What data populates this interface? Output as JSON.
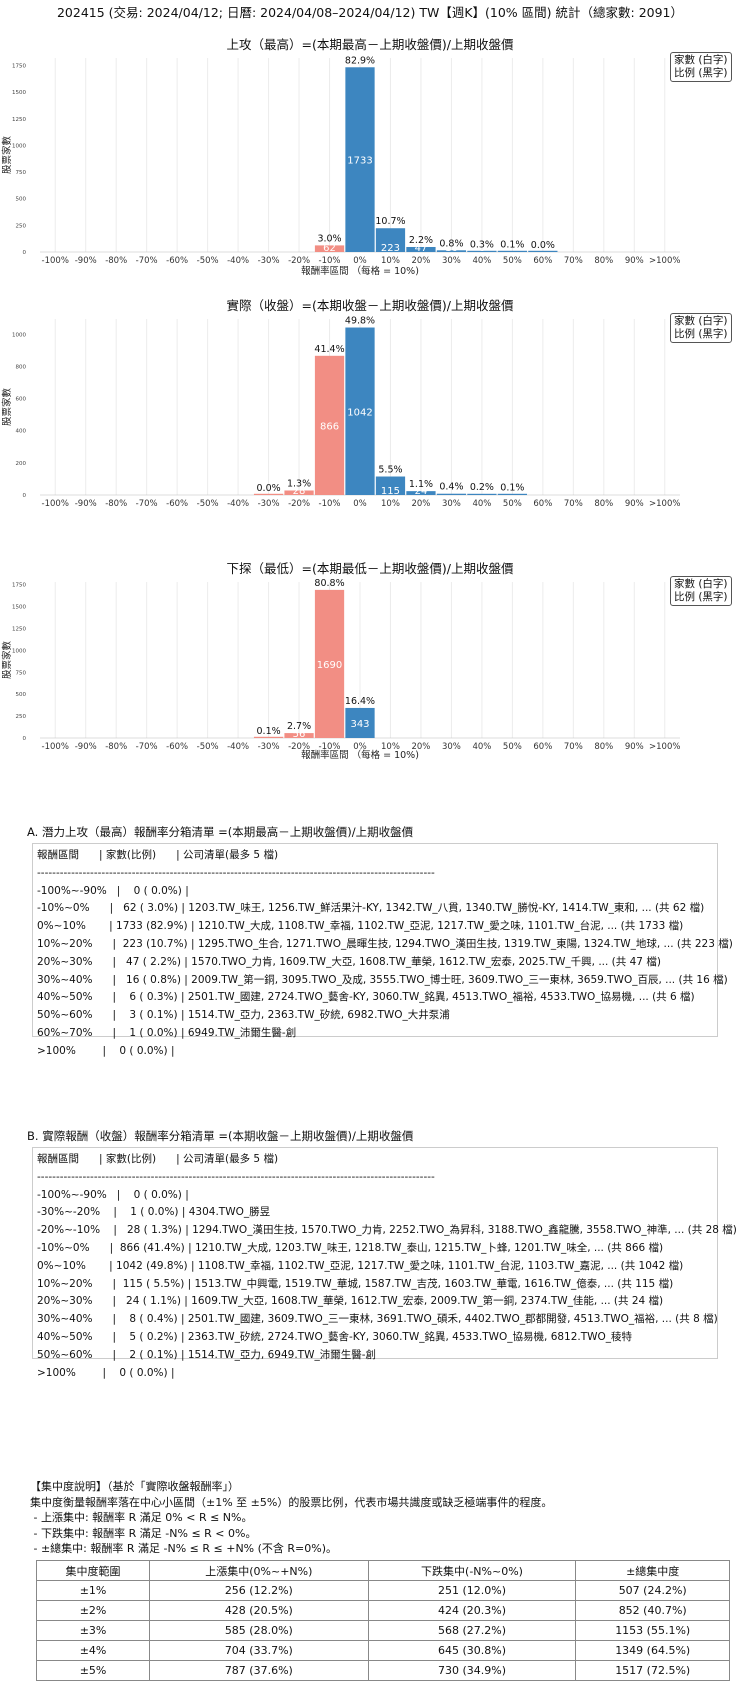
{
  "page_title": "202415 (交易: 2024/04/12; 日曆: 2024/04/08–2024/04/12) TW【週K】(10% 區間) 統計（總家數: 2091）",
  "chart_data": [
    {
      "type": "bar",
      "title": "上攻（最高）=(本期最高－上期收盤價)/上期收盤價",
      "xlabel": "報酬率區間 （每格 = 10%)",
      "ylabel": "股票家數",
      "legend": [
        "家數 (白字)",
        "比例 (黑字)"
      ],
      "legend_position": "top-right",
      "categories": [
        "-100%",
        "-90%",
        "-80%",
        "-70%",
        "-60%",
        "-50%",
        "-40%",
        "-30%",
        "-20%",
        "-10%",
        "0%",
        "10%",
        "20%",
        "30%",
        "40%",
        "50%",
        "60%",
        "70%",
        "80%",
        "90%",
        ">100%"
      ],
      "values": [
        0,
        0,
        0,
        0,
        0,
        0,
        0,
        0,
        0,
        62,
        1733,
        223,
        47,
        16,
        6,
        3,
        1,
        0,
        0,
        0,
        0
      ],
      "pct_labels": [
        "",
        "",
        "",
        "",
        "",
        "",
        "",
        "",
        "",
        "3.0%",
        "82.9%",
        "10.7%",
        "2.2%",
        "0.8%",
        "0.3%",
        "0.1%",
        "0.0%",
        "",
        "",
        "",
        ""
      ],
      "count_labels": [
        "",
        "",
        "",
        "",
        "",
        "",
        "",
        "",
        "",
        "62",
        "1733",
        "223",
        "47",
        "16",
        "6",
        "",
        "",
        "",
        "",
        "",
        ""
      ],
      "colors": [
        "#f28e84",
        "#f28e84",
        "#f28e84",
        "#f28e84",
        "#f28e84",
        "#f28e84",
        "#f28e84",
        "#f28e84",
        "#f28e84",
        "#f28e84",
        "#3d86c0",
        "#3d86c0",
        "#3d86c0",
        "#3d86c0",
        "#3d86c0",
        "#3d86c0",
        "#3d86c0",
        "#3d86c0",
        "#3d86c0",
        "#3d86c0",
        "#3d86c0"
      ],
      "yticks": [
        0,
        250,
        500,
        750,
        1000,
        1250,
        1500,
        1750
      ],
      "ylim": [
        0,
        1820
      ],
      "grid": true
    },
    {
      "type": "bar",
      "title": "實際（收盤）=(本期收盤－上期收盤價)/上期收盤價",
      "xlabel": "",
      "ylabel": "股票家數",
      "legend": [
        "家數 (白字)",
        "比例 (黑字)"
      ],
      "legend_position": "top-right",
      "categories": [
        "-100%",
        "-90%",
        "-80%",
        "-70%",
        "-60%",
        "-50%",
        "-40%",
        "-30%",
        "-20%",
        "-10%",
        "0%",
        "10%",
        "20%",
        "30%",
        "40%",
        "50%",
        "60%",
        "70%",
        "80%",
        "90%",
        ">100%"
      ],
      "values": [
        0,
        0,
        0,
        0,
        0,
        0,
        0,
        1,
        28,
        866,
        1042,
        115,
        24,
        8,
        5,
        2,
        0,
        0,
        0,
        0,
        0
      ],
      "pct_labels": [
        "",
        "",
        "",
        "",
        "",
        "",
        "",
        "0.0%",
        "1.3%",
        "41.4%",
        "49.8%",
        "5.5%",
        "1.1%",
        "0.4%",
        "0.2%",
        "0.1%",
        "",
        "",
        "",
        "",
        ""
      ],
      "count_labels": [
        "",
        "",
        "",
        "",
        "",
        "",
        "",
        "",
        "28",
        "866",
        "1042",
        "115",
        "24",
        "",
        "",
        "",
        "",
        "",
        "",
        "",
        ""
      ],
      "colors": [
        "#f28e84",
        "#f28e84",
        "#f28e84",
        "#f28e84",
        "#f28e84",
        "#f28e84",
        "#f28e84",
        "#f28e84",
        "#f28e84",
        "#f28e84",
        "#3d86c0",
        "#3d86c0",
        "#3d86c0",
        "#3d86c0",
        "#3d86c0",
        "#3d86c0",
        "#3d86c0",
        "#3d86c0",
        "#3d86c0",
        "#3d86c0",
        "#3d86c0"
      ],
      "yticks": [
        0,
        200,
        400,
        600,
        800,
        1000
      ],
      "ylim": [
        0,
        1095
      ],
      "grid": true
    },
    {
      "type": "bar",
      "title": "下探（最低）=(本期最低－上期收盤價)/上期收盤價",
      "xlabel": "報酬率區間 （每格 = 10%)",
      "ylabel": "股票家數",
      "legend": [
        "家數 (白字)",
        "比例 (黑字)"
      ],
      "legend_position": "top-right",
      "categories": [
        "-100%",
        "-90%",
        "-80%",
        "-70%",
        "-60%",
        "-50%",
        "-40%",
        "-30%",
        "-20%",
        "-10%",
        "0%",
        "10%",
        "20%",
        "30%",
        "40%",
        "50%",
        "60%",
        "70%",
        "80%",
        "90%",
        ">100%"
      ],
      "values": [
        0,
        0,
        0,
        0,
        0,
        0,
        0,
        2,
        56,
        1690,
        343,
        0,
        0,
        0,
        0,
        0,
        0,
        0,
        0,
        0,
        0
      ],
      "pct_labels": [
        "",
        "",
        "",
        "",
        "",
        "",
        "",
        "0.1%",
        "2.7%",
        "80.8%",
        "16.4%",
        "",
        "",
        "",
        "",
        "",
        "",
        "",
        "",
        "",
        ""
      ],
      "count_labels": [
        "",
        "",
        "",
        "",
        "",
        "",
        "",
        "",
        "56",
        "1690",
        "343",
        "",
        "",
        "",
        "",
        "",
        "",
        "",
        "",
        "",
        ""
      ],
      "colors": [
        "#f28e84",
        "#f28e84",
        "#f28e84",
        "#f28e84",
        "#f28e84",
        "#f28e84",
        "#f28e84",
        "#f28e84",
        "#f28e84",
        "#f28e84",
        "#3d86c0",
        "#3d86c0",
        "#3d86c0",
        "#3d86c0",
        "#3d86c0",
        "#3d86c0",
        "#3d86c0",
        "#3d86c0",
        "#3d86c0",
        "#3d86c0",
        "#3d86c0"
      ],
      "yticks": [
        0,
        250,
        500,
        750,
        1000,
        1250,
        1500,
        1750
      ],
      "ylim": [
        0,
        1780
      ],
      "grid": true
    }
  ],
  "section_a": {
    "title": "A. 潛力上攻（最高）報酬率分箱清單 =(本期最高－上期收盤價)/上期收盤價",
    "rows": [
      "報酬區間      | 家數(比例)      | 公司清單(最多 5 檔)",
      "---------------------------------------------------------------------------------------------------------",
      "-100%~-90%   |    0 ( 0.0%) |",
      "-10%~0%      |   62 ( 3.0%) | 1203.TW_味王, 1256.TW_鮮活果汁-KY, 1342.TW_八貫, 1340.TW_勝悅-KY, 1414.TW_東和, ... (共 62 檔)",
      "0%~10%       | 1733 (82.9%) | 1210.TW_大成, 1108.TW_幸福, 1102.TW_亞泥, 1217.TW_愛之味, 1101.TW_台泥, ... (共 1733 檔)",
      "10%~20%      |  223 (10.7%) | 1295.TWO_生合, 1271.TWO_晨暉生技, 1294.TWO_漢田生技, 1319.TW_東陽, 1324.TW_地球, ... (共 223 檔)",
      "20%~30%      |   47 ( 2.2%) | 1570.TWO_力肯, 1609.TW_大亞, 1608.TW_華榮, 1612.TW_宏泰, 2025.TW_千興, ... (共 47 檔)",
      "30%~40%      |   16 ( 0.8%) | 2009.TW_第一銅, 3095.TWO_及成, 3555.TWO_博士旺, 3609.TWO_三一東林, 3659.TWO_百辰, ... (共 16 檔)",
      "40%~50%      |    6 ( 0.3%) | 2501.TW_國建, 2724.TWO_藝舍-KY, 3060.TW_銘異, 4513.TWO_福裕, 4533.TWO_協易機, ... (共 6 檔)",
      "50%~60%      |    3 ( 0.1%) | 1514.TW_亞力, 2363.TW_矽統, 6982.TWO_大井泵浦",
      "60%~70%      |    1 ( 0.0%) | 6949.TW_沛爾生醫-創",
      ">100%        |    0 ( 0.0%) |"
    ]
  },
  "section_b": {
    "title": "B. 實際報酬（收盤）報酬率分箱清單 =(本期收盤－上期收盤價)/上期收盤價",
    "rows": [
      "報酬區間      | 家數(比例)      | 公司清單(最多 5 檔)",
      "---------------------------------------------------------------------------------------------------------",
      "-100%~-90%   |    0 ( 0.0%) |",
      "-30%~-20%    |    1 ( 0.0%) | 4304.TWO_勝昱",
      "-20%~-10%    |   28 ( 1.3%) | 1294.TWO_漢田生技, 1570.TWO_力肯, 2252.TWO_為昇科, 3188.TWO_鑫龍騰, 3558.TWO_神準, ... (共 28 檔)",
      "-10%~0%      |  866 (41.4%) | 1210.TW_大成, 1203.TW_味王, 1218.TW_泰山, 1215.TW_卜蜂, 1201.TW_味全, ... (共 866 檔)",
      "0%~10%       | 1042 (49.8%) | 1108.TW_幸福, 1102.TW_亞泥, 1217.TW_愛之味, 1101.TW_台泥, 1103.TW_嘉泥, ... (共 1042 檔)",
      "10%~20%      |  115 ( 5.5%) | 1513.TW_中興電, 1519.TW_華城, 1587.TW_吉茂, 1603.TW_華電, 1616.TW_億泰, ... (共 115 檔)",
      "20%~30%      |   24 ( 1.1%) | 1609.TW_大亞, 1608.TW_華榮, 1612.TW_宏泰, 2009.TW_第一銅, 2374.TW_佳能, ... (共 24 檔)",
      "30%~40%      |    8 ( 0.4%) | 2501.TW_國建, 3609.TWO_三一東林, 3691.TWO_碩禾, 4402.TWO_郡都開發, 4513.TWO_福裕, ... (共 8 檔)",
      "40%~50%      |    5 ( 0.2%) | 2363.TW_矽統, 2724.TWO_藝舍-KY, 3060.TW_銘異, 4533.TWO_協易機, 6812.TWO_稜特",
      "50%~60%      |    2 ( 0.1%) | 1514.TW_亞力, 6949.TW_沛爾生醫-創",
      ">100%        |    0 ( 0.0%) |"
    ]
  },
  "notes": {
    "lines": [
      "【集中度說明】（基於「實際收盤報酬率」）",
      "集中度衡量報酬率落在中心小區間（±1% 至 ±5%）的股票比例，代表市場共識度或缺乏極端事件的程度。",
      " - 上漲集中: 報酬率 R 滿足 0% < R ≤ N%。",
      " - 下跌集中: 報酬率 R 滿足 -N% ≤ R < 0%。",
      " - ±總集中: 報酬率 R 滿足 -N% ≤ R ≤ +N% (不含 R=0%)。"
    ]
  },
  "concentration_table": {
    "headers": [
      "集中度範圍",
      "上漲集中(0%~+N%)",
      "下跌集中(-N%~0%)",
      "±總集中度"
    ],
    "rows": [
      [
        "±1%",
        "256 (12.2%)",
        "251 (12.0%)",
        "507 (24.2%)"
      ],
      [
        "±2%",
        "428 (20.5%)",
        "424 (20.3%)",
        "852 (40.7%)"
      ],
      [
        "±3%",
        "585 (28.0%)",
        "568 (27.2%)",
        "1153 (55.1%)"
      ],
      [
        "±4%",
        "704 (33.7%)",
        "645 (30.8%)",
        "1349 (64.5%)"
      ],
      [
        "±5%",
        "787 (37.6%)",
        "730 (34.9%)",
        "1517 (72.5%)"
      ]
    ]
  }
}
